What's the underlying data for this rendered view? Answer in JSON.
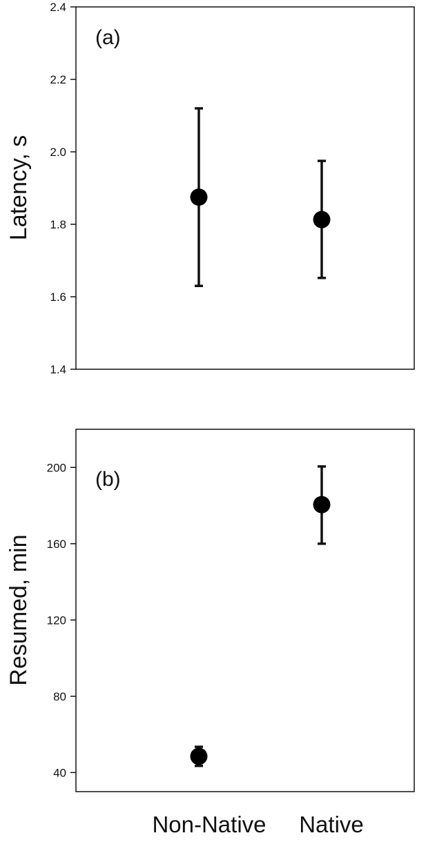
{
  "chart_data": [
    {
      "type": "scatter",
      "panel_label": "(a)",
      "ylabel": "Latency, s",
      "categories": [
        "Non-Native",
        "Native"
      ],
      "ylim": [
        1.4,
        2.4
      ],
      "yticks": [
        "1.4",
        "1.6",
        "1.8",
        "2.0",
        "2.2",
        "2.4"
      ],
      "grid": false,
      "series": [
        {
          "points": [
            {
              "x": "Non-Native",
              "y": 1.875,
              "err_low": 1.63,
              "err_high": 2.12
            },
            {
              "x": "Native",
              "y": 1.813,
              "err_low": 1.652,
              "err_high": 1.975
            }
          ]
        }
      ]
    },
    {
      "type": "scatter",
      "panel_label": "(b)",
      "ylabel": "Resumed, min",
      "categories": [
        "Non-Native",
        "Native"
      ],
      "ylim": [
        30,
        220
      ],
      "yticks": [
        "40",
        "80",
        "120",
        "160",
        "200"
      ],
      "grid": false,
      "series": [
        {
          "points": [
            {
              "x": "Non-Native",
              "y": 48.5,
              "err_low": 43.5,
              "err_high": 53.5
            },
            {
              "x": "Native",
              "y": 180.5,
              "err_low": 160,
              "err_high": 200.5
            }
          ]
        }
      ]
    }
  ],
  "x_category_labels": [
    "Non-Native",
    "Native"
  ]
}
